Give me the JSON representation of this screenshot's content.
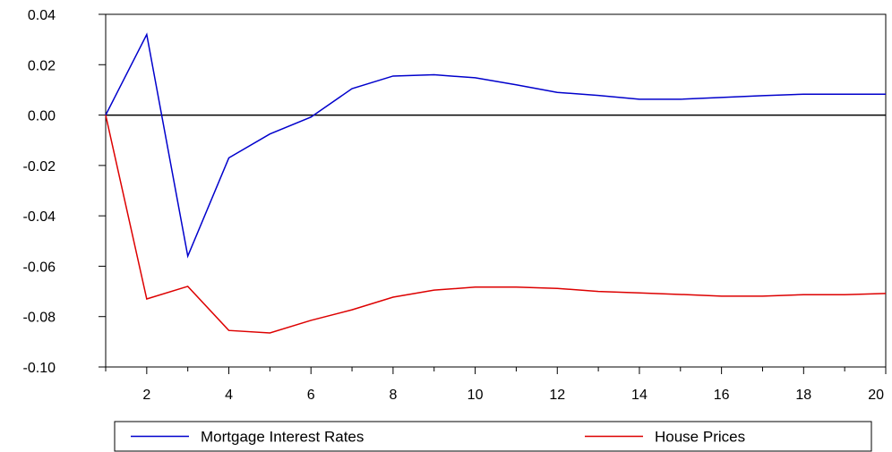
{
  "chart_data": {
    "type": "line",
    "title": "",
    "xlabel": "",
    "ylabel": "",
    "x": [
      1,
      2,
      3,
      4,
      5,
      6,
      7,
      8,
      9,
      10,
      11,
      12,
      13,
      14,
      15,
      16,
      17,
      18,
      19,
      20
    ],
    "xlim": [
      1,
      20
    ],
    "ylim": [
      -0.1,
      0.04
    ],
    "x_ticks": [
      2,
      4,
      6,
      8,
      10,
      12,
      14,
      16,
      18,
      20
    ],
    "x_tick_labels": [
      "2",
      "4",
      "6",
      "8",
      "10",
      "12",
      "14",
      "16",
      "18",
      "20"
    ],
    "y_ticks": [
      0.04,
      0.02,
      0.0,
      -0.02,
      -0.04,
      -0.06,
      -0.08,
      -0.1
    ],
    "y_tick_labels": [
      "0.04",
      "0.02",
      "0.00",
      "-0.02",
      "-0.04",
      "-0.06",
      "-0.08",
      "-0.10"
    ],
    "zero_line": true,
    "grid": false,
    "legend_position": "bottom",
    "series": [
      {
        "name": "Mortgage Interest Rates",
        "color": "#0000cc",
        "values": [
          0.0,
          0.032,
          -0.056,
          -0.017,
          -0.0075,
          -0.0008,
          0.0105,
          0.0155,
          0.016,
          0.0148,
          0.012,
          0.009,
          0.0078,
          0.0063,
          0.0063,
          0.007,
          0.0077,
          0.0083,
          0.0083,
          0.0083
        ]
      },
      {
        "name": "House Prices",
        "color": "#dd0000",
        "values": [
          0.0,
          -0.073,
          -0.068,
          -0.0855,
          -0.0865,
          -0.0815,
          -0.0773,
          -0.0723,
          -0.0695,
          -0.0683,
          -0.0683,
          -0.0688,
          -0.07,
          -0.0706,
          -0.0712,
          -0.0719,
          -0.0719,
          -0.0713,
          -0.0713,
          -0.0708
        ]
      }
    ]
  }
}
